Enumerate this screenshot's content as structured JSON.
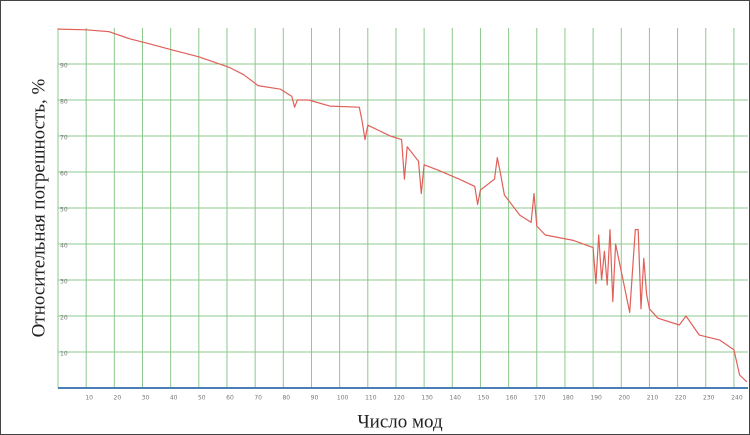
{
  "chart_data": {
    "type": "line",
    "x_label": "Число мод",
    "y_label": "Относительная погрешность, %",
    "color": "#e0605a",
    "grid": true,
    "grid_color": "#8cc88c",
    "xlim": [
      0,
      245
    ],
    "ylim": [
      0,
      100
    ],
    "xticks": [
      10,
      20,
      30,
      40,
      50,
      60,
      70,
      80,
      90,
      100,
      110,
      120,
      130,
      140,
      150,
      160,
      170,
      180,
      190,
      200,
      210,
      220,
      230,
      240
    ],
    "yticks": [
      10,
      20,
      30,
      40,
      50,
      60,
      70,
      80,
      90
    ],
    "x": [
      0,
      10,
      18,
      25.5,
      33,
      40,
      50,
      61,
      66,
      71,
      79,
      83,
      84,
      85,
      89,
      96.5,
      107,
      108,
      109,
      110,
      118,
      122,
      123,
      124,
      125,
      128,
      129,
      130,
      135,
      142.5,
      148,
      149,
      150,
      155,
      156,
      157,
      158.5,
      164,
      168,
      169,
      170,
      173,
      183,
      190,
      191,
      192,
      193,
      194,
      195,
      196,
      197,
      198,
      203,
      205,
      206,
      207,
      208,
      209,
      210,
      213,
      220.6,
      223,
      227.7,
      235,
      240,
      242,
      244.6
    ],
    "values": [
      99.7,
      99.5,
      99,
      97,
      95.5,
      94,
      92,
      89,
      87,
      84,
      83,
      81,
      78,
      80,
      80,
      78.3,
      78,
      74,
      69,
      73,
      70,
      69,
      58,
      67,
      66,
      63,
      54,
      62,
      60.5,
      58,
      56,
      51,
      55,
      58,
      64,
      60,
      53.6,
      48,
      46,
      54,
      45,
      42.5,
      41,
      39,
      29,
      42.5,
      30,
      38,
      28.6,
      44,
      24,
      40,
      21,
      44,
      44,
      22,
      36,
      26,
      22,
      19.4,
      17.5,
      20,
      14.7,
      13.3,
      10.6,
      3.6,
      1.7
    ]
  }
}
